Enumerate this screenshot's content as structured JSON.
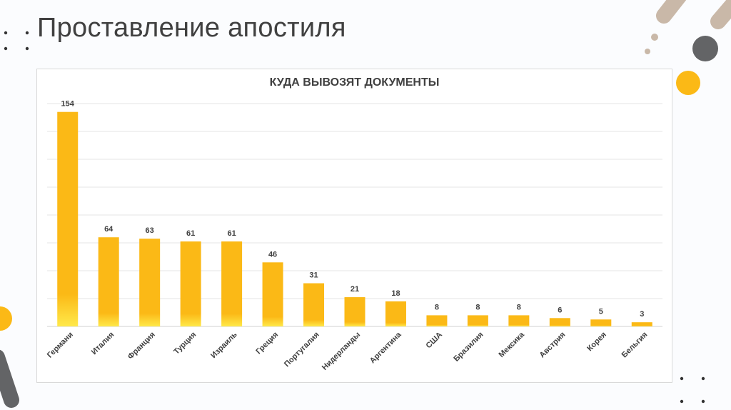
{
  "slide": {
    "title": "Проставление апостиля"
  },
  "colors": {
    "bar": "#fbb916",
    "bar_glow": "#ffe94a",
    "grid": "#e6e6e6",
    "text": "#404040",
    "accent_gray": "#636466",
    "accent_beige": "#c9b8a8",
    "accent_yellow": "#fbb916"
  },
  "chart_data": {
    "type": "bar",
    "title": "КУДА ВЫВОЗЯТ ДОКУМЕНТЫ",
    "categories": [
      "Германи",
      "Италия",
      "Франция",
      "Турция",
      "Израиль",
      "Греция",
      "Португалия",
      "Нидерланды",
      "Аргентина",
      "США",
      "Бразилия",
      "Мексика",
      "Австрия",
      "Корея",
      "Бельгия"
    ],
    "values": [
      154,
      64,
      63,
      61,
      61,
      46,
      31,
      21,
      18,
      8,
      8,
      8,
      6,
      5,
      3
    ],
    "ylim": [
      0,
      160
    ],
    "grid": true,
    "gridlines": 8,
    "data_labels": true
  }
}
